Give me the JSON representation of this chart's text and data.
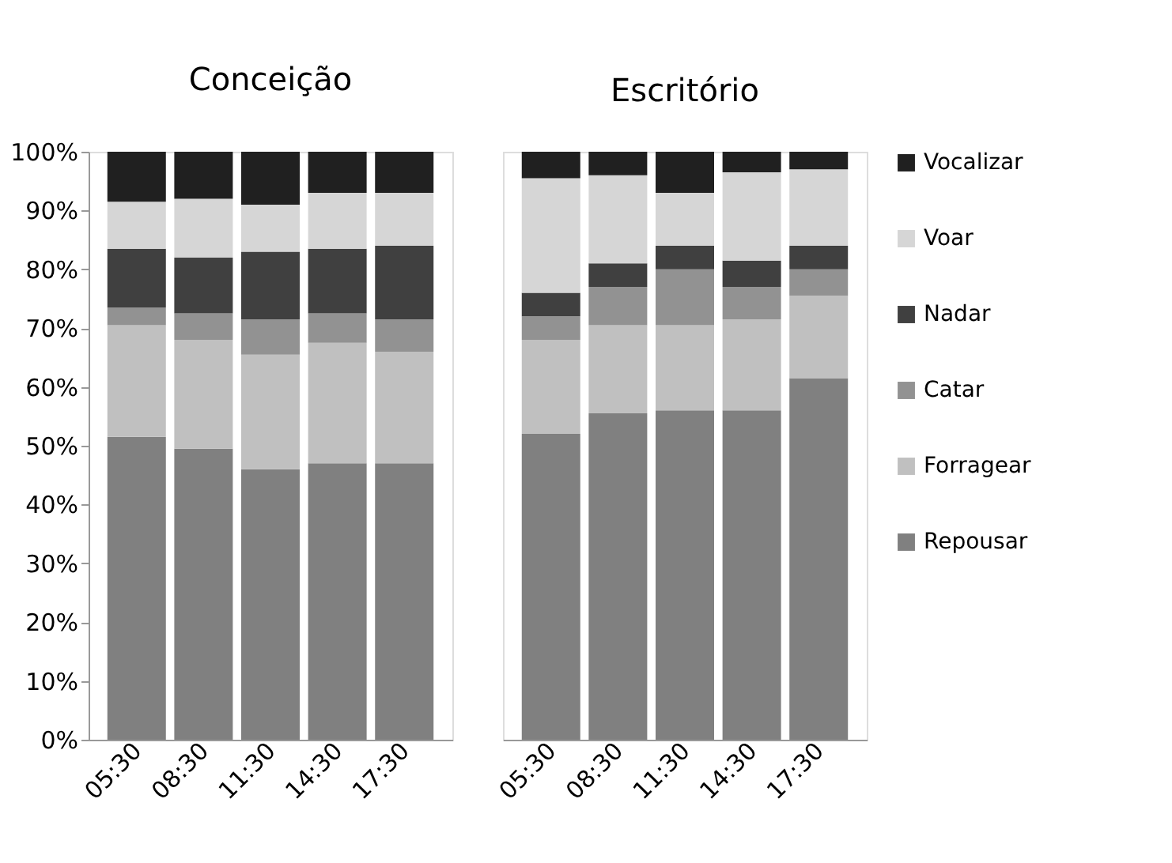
{
  "chart_data": [
    {
      "type": "bar",
      "title": "Conceição",
      "stacked": true,
      "categories": [
        "05:30",
        "08:30",
        "11:30",
        "14:30",
        "17:30"
      ],
      "ylim": [
        0,
        100
      ],
      "yticks": [
        {
          "value": 0,
          "label": "0%"
        },
        {
          "value": 10,
          "label": "10%"
        },
        {
          "value": 20,
          "label": "20%"
        },
        {
          "value": 30,
          "label": "30%"
        },
        {
          "value": 40,
          "label": "40%"
        },
        {
          "value": 50,
          "label": "50%"
        },
        {
          "value": 60,
          "label": "60%"
        },
        {
          "value": 70,
          "label": "70%"
        },
        {
          "value": 80,
          "label": "80%"
        },
        {
          "value": 90,
          "label": "90%"
        },
        {
          "value": 100,
          "label": "100%"
        }
      ],
      "grid": false,
      "series": [
        {
          "color": "#808080",
          "values": [
            51.5,
            49.5,
            46,
            47,
            47
          ]
        },
        {
          "color": "#c0c0c0",
          "values": [
            19,
            18.5,
            19.5,
            20.5,
            19
          ]
        },
        {
          "color": "#929292",
          "values": [
            3,
            4.5,
            6,
            5,
            5.5
          ]
        },
        {
          "color": "#404040",
          "values": [
            10,
            9.5,
            11.5,
            11,
            12.5
          ]
        },
        {
          "color": "#d6d6d6",
          "values": [
            8,
            10,
            8,
            9.5,
            9
          ]
        },
        {
          "color": "#202020",
          "values": [
            8.5,
            8,
            9,
            7,
            7
          ]
        }
      ]
    },
    {
      "type": "bar",
      "title": "Escritório",
      "stacked": true,
      "categories": [
        "05:30",
        "08:30",
        "11:30",
        "14:30",
        "17:30"
      ],
      "ylim": [
        0,
        100
      ],
      "grid": false,
      "legend": "right",
      "tick_labels": "x",
      "series": [
        {
          "name": "Repousar",
          "color": "#808080",
          "values": [
            52,
            55.5,
            56,
            56,
            61.5
          ]
        },
        {
          "name": "Forragear",
          "color": "#c0c0c0",
          "values": [
            16,
            15,
            14.5,
            15.5,
            14
          ]
        },
        {
          "name": "Catar",
          "color": "#929292",
          "values": [
            4,
            6.5,
            9.5,
            5.5,
            4.5
          ]
        },
        {
          "name": "Nadar",
          "color": "#404040",
          "values": [
            4,
            4,
            4,
            4.5,
            4
          ]
        },
        {
          "name": "Voar",
          "color": "#d6d6d6",
          "values": [
            19.5,
            15,
            9,
            15,
            13
          ]
        },
        {
          "name": "Vocalizar",
          "color": "#202020",
          "values": [
            4.5,
            4,
            7,
            3.5,
            3
          ]
        }
      ]
    }
  ]
}
